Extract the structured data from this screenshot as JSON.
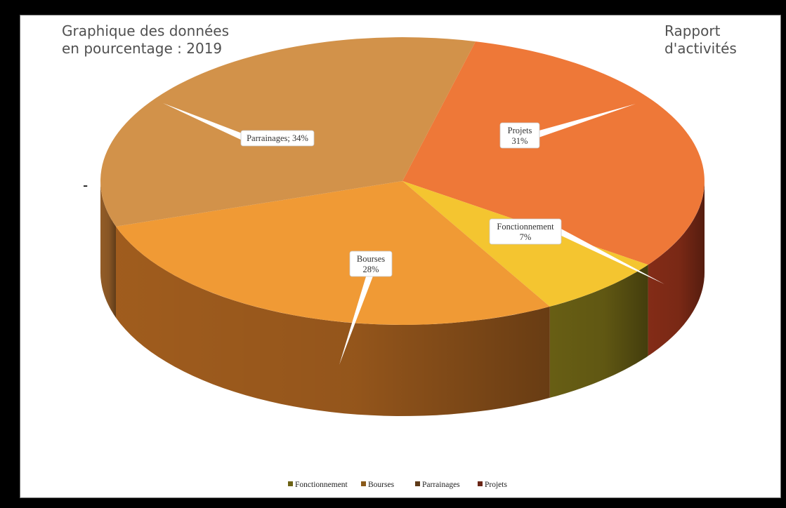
{
  "header": {
    "title_line1": "Graphique des données",
    "title_line2": "en pourcentage : 2019",
    "report_line1": "Rapport",
    "report_line2": "d'activités",
    "stray_mark": "-"
  },
  "chart_data": {
    "type": "pie",
    "title": "",
    "style": "3d",
    "legend_position": "bottom",
    "slices": [
      {
        "label": "Fonctionnement",
        "value": 7,
        "text": "7%",
        "top_color": "#f4c530",
        "side_color": "#6d6315"
      },
      {
        "label": "Bourses",
        "value": 28,
        "text": "28%",
        "top_color": "#f09a35",
        "side_color": "#a8611f"
      },
      {
        "label": "Parrainages",
        "value": 34,
        "text": "34%",
        "top_color": "#d2924a",
        "side_color": "#9a6129"
      },
      {
        "label": "Projets",
        "value": 31,
        "text": "31%",
        "top_color": "#ee7838",
        "side_color": "#8a2e18"
      }
    ],
    "data_labels": [
      {
        "slice": "Projets",
        "line1": "Projets",
        "line2": "31%"
      },
      {
        "slice": "Fonctionnement",
        "line1": "Fonctionnement",
        "line2": "7%"
      },
      {
        "slice": "Bourses",
        "line1": "Bourses",
        "line2": "28%"
      },
      {
        "slice": "Parrainages",
        "line1": "Parrainages; 34%",
        "line2": ""
      }
    ],
    "legend": [
      {
        "label": "Fonctionnement",
        "color": "#6d6315"
      },
      {
        "label": "Bourses",
        "color": "#8a5a1a"
      },
      {
        "label": "Parrainages",
        "color": "#5e3a18"
      },
      {
        "label": "Projets",
        "color": "#6a2516"
      }
    ]
  }
}
